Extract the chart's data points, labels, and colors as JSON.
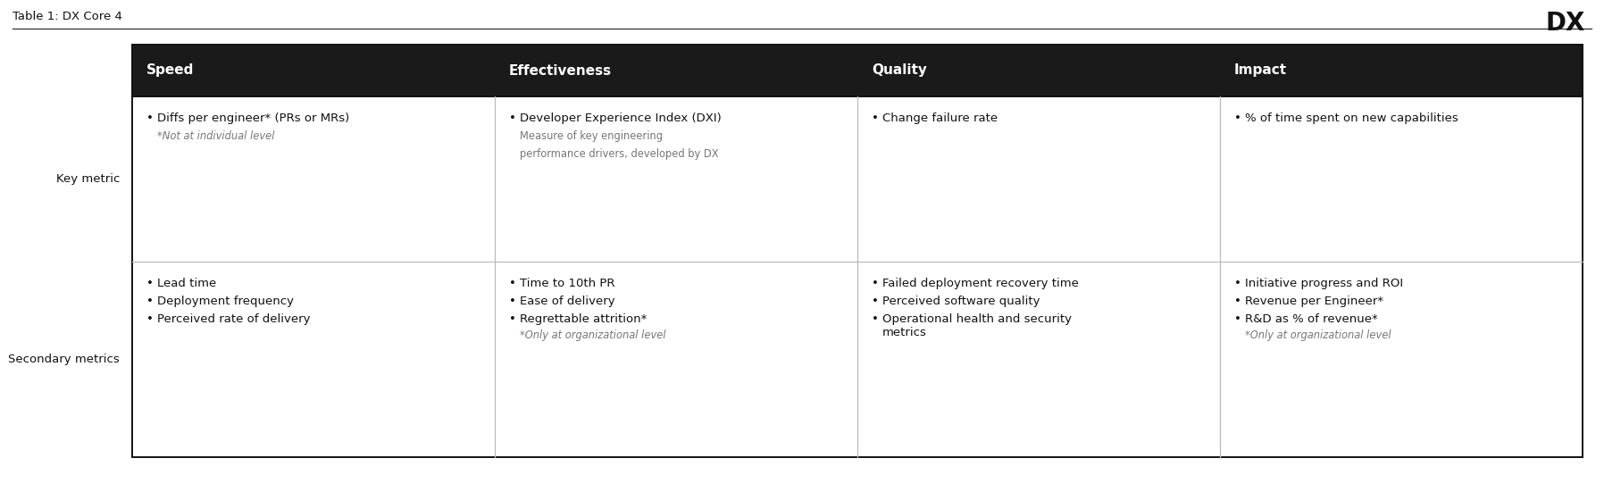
{
  "title": "Table 1: DX Core 4",
  "header_bg": "#1a1a1a",
  "header_text_color": "#ffffff",
  "body_bg": "#ffffff",
  "body_text_color": "#111111",
  "table_border_color": "#111111",
  "grid_color": "#bbbbbb",
  "columns": [
    "Speed",
    "Effectiveness",
    "Quality",
    "Impact"
  ],
  "row_labels": [
    "Key metric",
    "Secondary metrics"
  ],
  "key_metric_speed_bullet": "Diffs per engineer* (PRs or MRs)",
  "key_metric_speed_note": "*Not at individual level",
  "key_metric_eff_bullet": "Developer Experience Index (DXI)",
  "key_metric_eff_sub1": "Measure of key engineering",
  "key_metric_eff_sub2": "performance drivers, developed by DX",
  "key_metric_qual_bullet": "Change failure rate",
  "key_metric_imp_bullet": "% of time spent on new capabilities",
  "sec_speed_bullets": [
    "Lead time",
    "Deployment frequency",
    "Perceived rate of delivery"
  ],
  "sec_eff_bullets": [
    "Time to 10th PR",
    "Ease of delivery",
    "Regrettable attrition*"
  ],
  "sec_eff_note": "*Only at organizational level",
  "sec_qual_bullets": [
    "Failed deployment recovery time",
    "Perceived software quality",
    "Operational health and security",
    "metrics"
  ],
  "sec_imp_bullets": [
    "Initiative progress and ROI",
    "Revenue per Engineer*",
    "R&D as % of revenue*"
  ],
  "sec_imp_note": "*Only at organizational level",
  "fig_width": 17.96,
  "fig_height": 5.6,
  "dpi": 100
}
